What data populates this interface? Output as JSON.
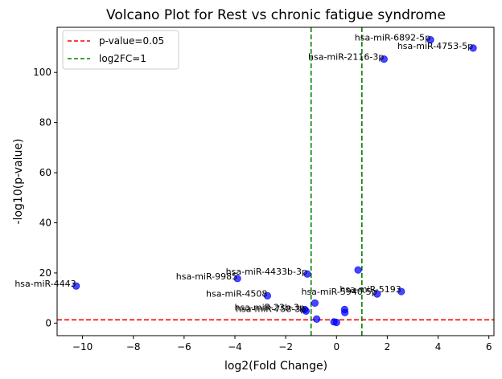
{
  "chart_data": {
    "type": "scatter",
    "title": "Volcano Plot for Rest vs chronic fatigue syndrome",
    "xlabel": "log2(Fold Change)",
    "ylabel": "-log10(p-value)",
    "xlim": [
      -11.0,
      6.2
    ],
    "ylim": [
      -5.0,
      118.0
    ],
    "xticks": [
      -10,
      -8,
      -6,
      -4,
      -2,
      0,
      2,
      4,
      6
    ],
    "yticks": [
      0,
      20,
      40,
      60,
      80,
      100
    ],
    "xtick_labels": [
      "−10",
      "−8",
      "−6",
      "−4",
      "−2",
      "0",
      "2",
      "4",
      "6"
    ],
    "ytick_labels": [
      "0",
      "20",
      "40",
      "60",
      "80",
      "100"
    ],
    "grid": false,
    "legend_position": "top-left",
    "point_color": "#0000ff",
    "points": [
      {
        "x": -10.25,
        "y": 14.8,
        "label": "hsa-miR-4443"
      },
      {
        "x": -3.9,
        "y": 17.8,
        "label": "hsa-miR-9985"
      },
      {
        "x": -1.15,
        "y": 19.6,
        "label": "hsa-miR-4433b-3p"
      },
      {
        "x": -2.72,
        "y": 10.9,
        "label": "hsa-miR-4508"
      },
      {
        "x": -1.25,
        "y": 5.4,
        "label": "hsa-miR-23b-3p"
      },
      {
        "x": -1.2,
        "y": 4.8,
        "label": "hsa-miR-758-3p"
      },
      {
        "x": -0.85,
        "y": 8.0,
        "label": ""
      },
      {
        "x": -0.78,
        "y": 1.6,
        "label": ""
      },
      {
        "x": -0.1,
        "y": 0.5,
        "label": ""
      },
      {
        "x": 0.0,
        "y": 0.3,
        "label": ""
      },
      {
        "x": 0.32,
        "y": 5.4,
        "label": ""
      },
      {
        "x": 0.33,
        "y": 4.2,
        "label": ""
      },
      {
        "x": 0.85,
        "y": 21.2,
        "label": ""
      },
      {
        "x": 1.6,
        "y": 11.6,
        "label": "hsa-miR-5940-5p"
      },
      {
        "x": 2.55,
        "y": 12.6,
        "label": "hsa-miR-5193"
      },
      {
        "x": 1.87,
        "y": 105.3,
        "label": "hsa-miR-2116-3p"
      },
      {
        "x": 3.7,
        "y": 113.0,
        "label": "hsa-miR-6892-5p"
      },
      {
        "x": 5.38,
        "y": 109.7,
        "label": "hsa-miR-4753-5p"
      }
    ],
    "threshold_lines": [
      {
        "orientation": "horizontal",
        "value": 1.3,
        "color": "#ff0000",
        "style": "dashed",
        "legend": "p-value=0.05"
      },
      {
        "orientation": "vertical",
        "value": -1,
        "color": "#008000",
        "style": "dashed",
        "legend": "log2FC=1"
      },
      {
        "orientation": "vertical",
        "value": 1,
        "color": "#008000",
        "style": "dashed",
        "legend": ""
      }
    ],
    "legend": [
      {
        "label": "p-value=0.05",
        "color": "#ff0000"
      },
      {
        "label": "log2FC=1",
        "color": "#008000"
      }
    ]
  }
}
